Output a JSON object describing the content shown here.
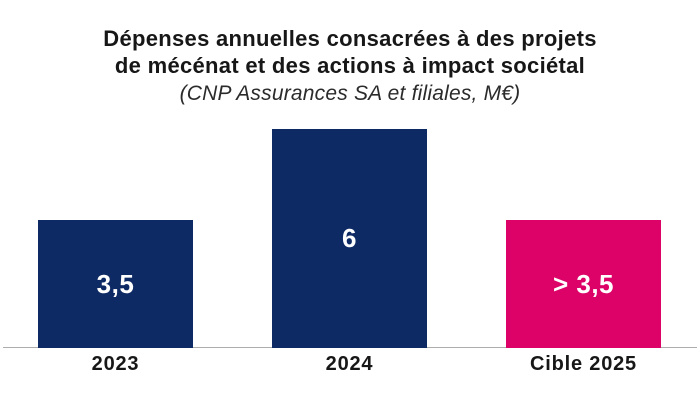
{
  "header": {
    "title_line1": "Dépenses annuelles consacrées à des projets",
    "title_line2": "de mécénat et des actions à impact sociétal",
    "subtitle": "(CNP Assurances SA et filiales, M€)"
  },
  "chart_data": {
    "type": "bar",
    "title": "Dépenses annuelles consacrées à des projets de mécénat et des actions à impact sociétal",
    "subtitle": "(CNP Assurances SA et filiales, M€)",
    "unit": "M€",
    "categories": [
      "2023",
      "2024",
      "Cible 2025"
    ],
    "values": [
      3.5,
      6,
      3.5
    ],
    "bars": [
      {
        "category": "2023",
        "value": 3.5,
        "label": "3,5",
        "color": "#0E2A64"
      },
      {
        "category": "2024",
        "value": 6,
        "label": "6",
        "color": "#0E2A64"
      },
      {
        "category": "Cible 2025",
        "value": 3.5,
        "label": "> 3,5",
        "color": "#DC0268"
      }
    ],
    "ylim": [
      0,
      6
    ],
    "grid": false,
    "legend": false,
    "value_labels_inside_bars": true,
    "colors": {
      "navy": "#0E2A64",
      "pink": "#DC0268",
      "axis_line": "#ADADAD",
      "value_label_text": "#FFFFFF",
      "title_text": "#171717"
    }
  }
}
